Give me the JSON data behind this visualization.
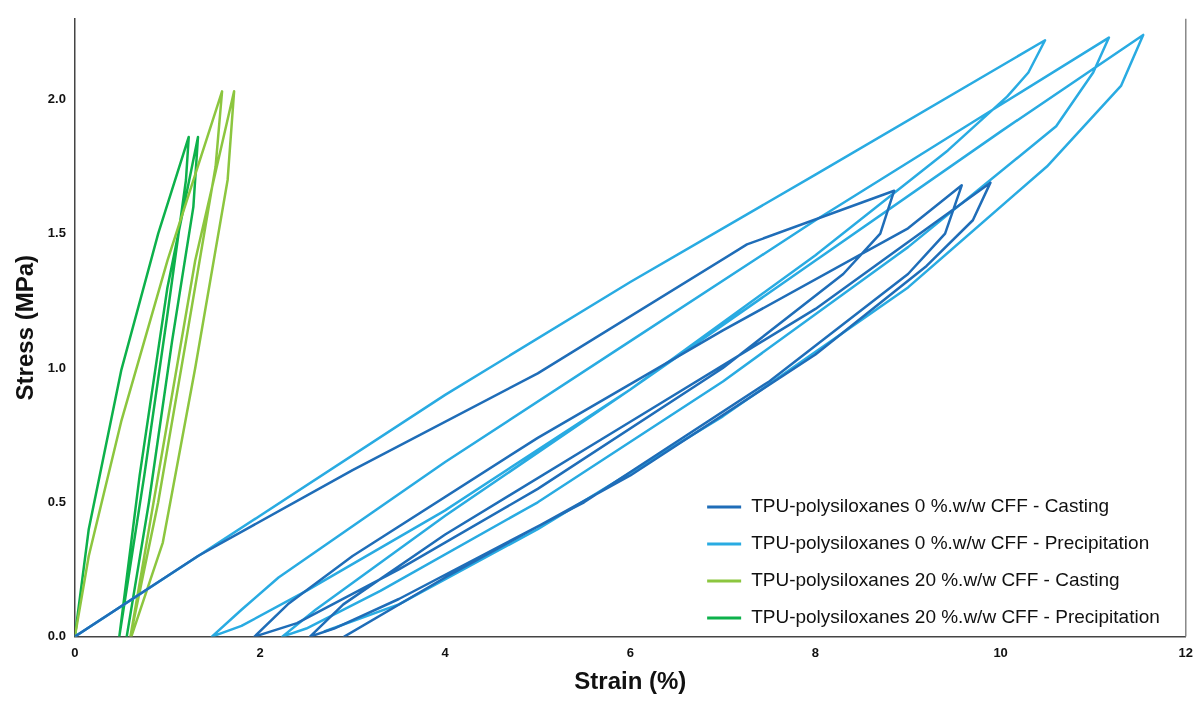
{
  "chart_data": {
    "type": "line",
    "xlabel": "Strain (%)",
    "ylabel": "Stress (MPa)",
    "xlim": [
      0,
      12
    ],
    "ylim": [
      0,
      2.3
    ],
    "xticks": [
      0,
      2,
      4,
      6,
      8,
      10,
      12
    ],
    "yticks": [
      {
        "value": 0,
        "label": "0.0"
      },
      {
        "value": 0.5,
        "label": "0.5"
      },
      {
        "value": 1,
        "label": "1.0"
      },
      {
        "value": 1.5,
        "label": "1.5"
      },
      {
        "value": 2,
        "label": "2.0"
      }
    ],
    "grid": false,
    "legend": "bottom right",
    "marker": "none",
    "line_style": "solid",
    "series": [
      {
        "name": "TPU-polysiloxanes 0 %.w/w CFF - Casting",
        "color": "#1f6db8",
        "x": [
          0,
          1.33,
          3,
          5,
          7.26,
          8.85,
          8.7,
          8.3,
          7,
          5,
          3.5,
          2.4,
          1.94,
          2.3,
          3,
          5,
          7,
          9,
          9.58,
          9.4,
          9,
          7.5,
          5.5,
          3.5,
          2.8,
          2.54,
          2.9,
          4,
          6,
          8,
          9.89,
          9.7,
          9.2,
          8,
          6,
          4,
          2.91
        ],
        "values": [
          0,
          0.3,
          0.62,
          0.98,
          1.46,
          1.66,
          1.5,
          1.35,
          1.0,
          0.55,
          0.25,
          0.05,
          0,
          0.12,
          0.3,
          0.74,
          1.14,
          1.52,
          1.68,
          1.5,
          1.35,
          0.95,
          0.5,
          0.14,
          0.03,
          0,
          0.12,
          0.38,
          0.8,
          1.22,
          1.69,
          1.55,
          1.38,
          1.05,
          0.6,
          0.22,
          0
        ]
      },
      {
        "name": "TPU-polysiloxanes 0 %.w/w CFF - Precipitation",
        "color": "#29abe2",
        "x": [
          0,
          2,
          4,
          6,
          8,
          10.48,
          10.3,
          10.07,
          9.43,
          8,
          6,
          4,
          2.5,
          1.8,
          1.48,
          1.8,
          2.2,
          4,
          6,
          8,
          10,
          11.17,
          11.0,
          10.6,
          9,
          7,
          5,
          3.3,
          2.5,
          2.24,
          2.6,
          4,
          6,
          8,
          10,
          11.54,
          11.3,
          10.5,
          9,
          7,
          5,
          3.5,
          2.7
        ],
        "values": [
          0,
          0.45,
          0.9,
          1.32,
          1.72,
          2.22,
          2.1,
          2.01,
          1.81,
          1.42,
          0.92,
          0.47,
          0.17,
          0.04,
          0,
          0.1,
          0.22,
          0.65,
          1.1,
          1.55,
          1.98,
          2.23,
          2.1,
          1.9,
          1.45,
          0.95,
          0.5,
          0.17,
          0.03,
          0,
          0.1,
          0.45,
          0.92,
          1.4,
          1.88,
          2.24,
          2.05,
          1.75,
          1.3,
          0.82,
          0.4,
          0.12,
          0.02
        ]
      },
      {
        "name": "TPU-polysiloxanes 20 %.w/w CFF - Casting",
        "color": "#8cc63f",
        "x": [
          0,
          0.15,
          0.5,
          1.0,
          1.59,
          1.52,
          1.2,
          0.9,
          0.6,
          0.9,
          1.3,
          1.72,
          1.65,
          1.3,
          0.95,
          0.61
        ],
        "values": [
          0,
          0.3,
          0.8,
          1.4,
          2.03,
          1.75,
          1.1,
          0.5,
          0,
          0.6,
          1.4,
          2.03,
          1.7,
          1.0,
          0.35,
          0
        ]
      },
      {
        "name": "TPU-polysiloxanes 20 %.w/w CFF - Precipitation",
        "color": "#0db14b",
        "x": [
          0,
          0.15,
          0.5,
          0.9,
          1.23,
          1.2,
          1.0,
          0.75,
          0.48,
          0.7,
          1.0,
          1.33,
          1.28,
          1.05,
          0.8,
          0.56
        ],
        "values": [
          0,
          0.4,
          0.99,
          1.5,
          1.86,
          1.7,
          1.2,
          0.6,
          0,
          0.6,
          1.3,
          1.86,
          1.6,
          1.1,
          0.5,
          0
        ]
      }
    ]
  }
}
